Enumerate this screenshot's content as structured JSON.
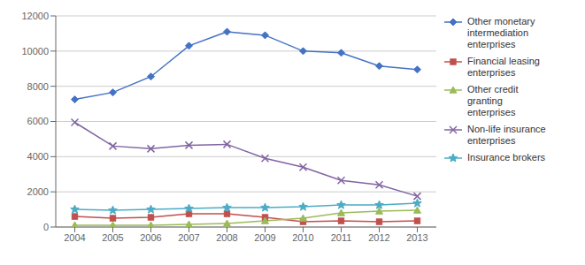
{
  "chart_data": {
    "type": "line",
    "x": [
      2004,
      2005,
      2006,
      2007,
      2008,
      2009,
      2010,
      2011,
      2012,
      2013
    ],
    "xlim": [
      2003.5,
      2013.5
    ],
    "xticks": [
      2004,
      2005,
      2006,
      2007,
      2008,
      2009,
      2010,
      2011,
      2012,
      2013
    ],
    "ylim": [
      0,
      12000
    ],
    "yticks": [
      0,
      2000,
      4000,
      6000,
      8000,
      10000,
      12000
    ],
    "grid": "y",
    "legend": "right",
    "series": [
      {
        "name": "Other monetary\nintermediation\nenterprises",
        "color": "#4472C4",
        "marker": "diamond",
        "values": [
          7250,
          7650,
          8550,
          10300,
          11100,
          10900,
          10000,
          9900,
          9150,
          8950
        ]
      },
      {
        "name": "Financial leasing\nenterprises",
        "color": "#C0504D",
        "marker": "square",
        "values": [
          600,
          500,
          550,
          750,
          750,
          550,
          300,
          350,
          300,
          350
        ]
      },
      {
        "name": "Other credit\ngranting\nenterprises",
        "color": "#9BBB59",
        "marker": "triangle",
        "values": [
          100,
          100,
          100,
          150,
          200,
          350,
          500,
          800,
          900,
          950
        ]
      },
      {
        "name": "Non-life insurance\nenterprises",
        "color": "#8064A2",
        "marker": "x",
        "values": [
          5950,
          4600,
          4450,
          4650,
          4700,
          3900,
          3400,
          2650,
          2400,
          1750
        ]
      },
      {
        "name": "Insurance brokers",
        "color": "#4BACC6",
        "marker": "star",
        "values": [
          1000,
          950,
          1000,
          1050,
          1100,
          1100,
          1150,
          1250,
          1250,
          1350
        ]
      }
    ]
  }
}
